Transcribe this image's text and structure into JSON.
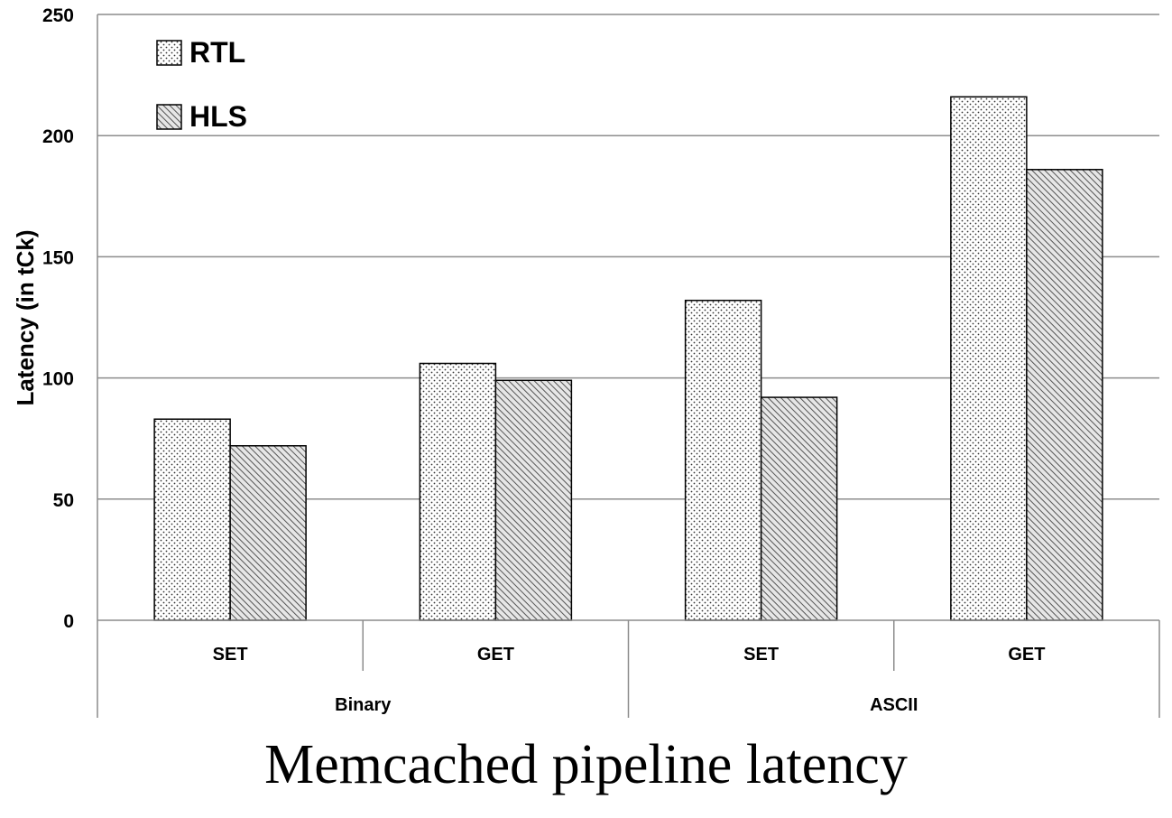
{
  "caption": "Memcached pipeline latency",
  "chart_data": {
    "type": "bar",
    "title": "",
    "xlabel": "",
    "ylabel": "Latency (in tCk)",
    "ylim": [
      0,
      250
    ],
    "yticks": [
      0,
      50,
      100,
      150,
      200,
      250
    ],
    "grid": true,
    "legend_position": "top-left",
    "categories": [
      "SET",
      "GET",
      "SET",
      "GET"
    ],
    "groups": [
      {
        "label": "Binary",
        "categories": [
          "SET",
          "GET"
        ]
      },
      {
        "label": "ASCII",
        "categories": [
          "SET",
          "GET"
        ]
      }
    ],
    "series": [
      {
        "name": "RTL",
        "pattern": "dots",
        "values": [
          83,
          106,
          132,
          216
        ]
      },
      {
        "name": "HLS",
        "pattern": "diagonal-hatch",
        "values": [
          72,
          99,
          92,
          186
        ]
      }
    ]
  }
}
